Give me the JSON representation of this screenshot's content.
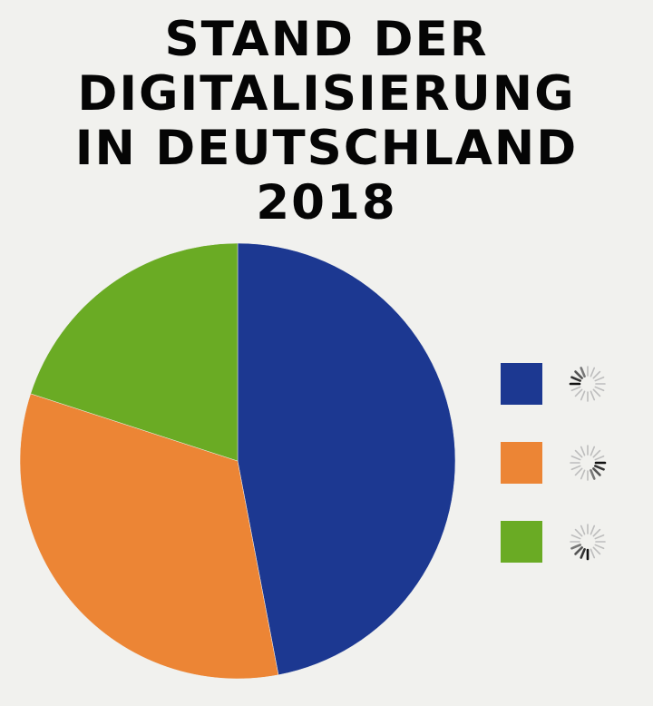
{
  "title_lines": [
    "STAND DER",
    "DIGITALISIERUNG",
    "IN DEUTSCHLAND",
    "2018"
  ],
  "chart_data": {
    "type": "pie",
    "title": "STAND DER DIGITALISIERUNG IN DEUTSCHLAND 2018",
    "slices": [
      {
        "value": 47,
        "color": "#1c3891",
        "legend_icon": "loading-spinner-icon"
      },
      {
        "value": 33,
        "color": "#ec8535",
        "legend_icon": "loading-spinner-icon"
      },
      {
        "value": 20,
        "color": "#6aab24",
        "legend_icon": "loading-spinner-icon"
      }
    ],
    "start_angle_deg": 0,
    "direction": "clockwise",
    "legend_position": "right"
  }
}
